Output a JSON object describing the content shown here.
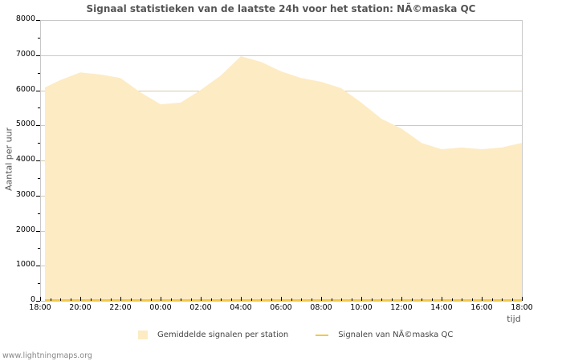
{
  "title": "Signaal statistieken van de laatste 24h voor het station: NÃ©maska QC",
  "footer": "www.lightningmaps.org",
  "legend": {
    "series1": "Gemiddelde signalen per station",
    "series2": "Signalen van NÃ©maska QC"
  },
  "axes": {
    "ylabel": "Aantal per uur",
    "xlabel": "tijd",
    "yticks": [
      "8000",
      "7000",
      "6000",
      "5000",
      "4000",
      "3000",
      "2000",
      "1000",
      "0"
    ],
    "xticks": [
      "18:00",
      "20:00",
      "22:00",
      "00:00",
      "02:00",
      "04:00",
      "06:00",
      "08:00",
      "10:00",
      "12:00",
      "14:00",
      "16:00",
      "18:00"
    ]
  },
  "colors": {
    "area_fill": "#fdebc4",
    "station_line": "#f5c842",
    "grid": "#d9c9a8",
    "axis": "#c8c8c8",
    "title": "#555555"
  },
  "chart_data": {
    "type": "area",
    "title": "Signaal statistieken van de laatste 24h voor het station: NÃ©maska QC",
    "xlabel": "tijd",
    "ylabel": "Aantal per uur",
    "ylim": [
      0,
      8000
    ],
    "grid": true,
    "legend_position": "bottom",
    "x": [
      "18:00",
      "19:00",
      "20:00",
      "21:00",
      "22:00",
      "23:00",
      "00:00",
      "01:00",
      "02:00",
      "03:00",
      "04:00",
      "05:00",
      "06:00",
      "07:00",
      "08:00",
      "09:00",
      "10:00",
      "11:00",
      "12:00",
      "13:00",
      "14:00",
      "15:00",
      "16:00",
      "17:00",
      "18:00"
    ],
    "series": [
      {
        "name": "Gemiddelde signalen per station",
        "type": "area",
        "values": [
          6080,
          6290,
          6510,
          6450,
          6350,
          5940,
          5600,
          5650,
          6010,
          6420,
          6970,
          6810,
          6540,
          6350,
          6240,
          6060,
          5650,
          5190,
          4910,
          4500,
          4320,
          4370,
          4320,
          4370,
          4500
        ]
      },
      {
        "name": "Signalen van NÃ©maska QC",
        "type": "line",
        "values": [
          0,
          0,
          0,
          0,
          0,
          0,
          0,
          0,
          0,
          0,
          0,
          0,
          0,
          0,
          0,
          0,
          0,
          0,
          0,
          0,
          0,
          0,
          0,
          0,
          0
        ]
      }
    ]
  }
}
